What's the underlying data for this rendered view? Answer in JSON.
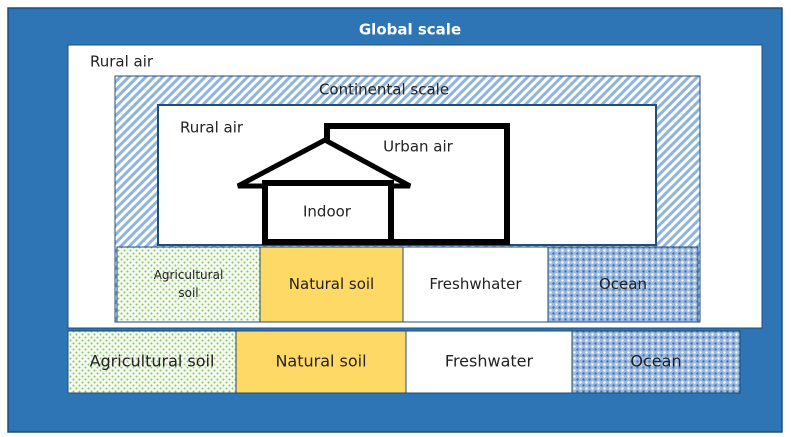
{
  "title": "Global scale",
  "global_air": "Rural air",
  "continental": {
    "title": "Continental scale",
    "rural_air": "Rural air",
    "urban_air": "Urban air",
    "indoor": "Indoor",
    "compartments": [
      {
        "lines": [
          "Agricultural",
          "soil"
        ]
      },
      {
        "label": "Natural soil"
      },
      {
        "label": "Freshwhater"
      },
      {
        "label": "Ocean"
      }
    ]
  },
  "global_compartments": [
    {
      "label": "Agricultural soil"
    },
    {
      "label": "Natural soil"
    },
    {
      "label": "Freshwater"
    },
    {
      "label": "Ocean"
    }
  ]
}
